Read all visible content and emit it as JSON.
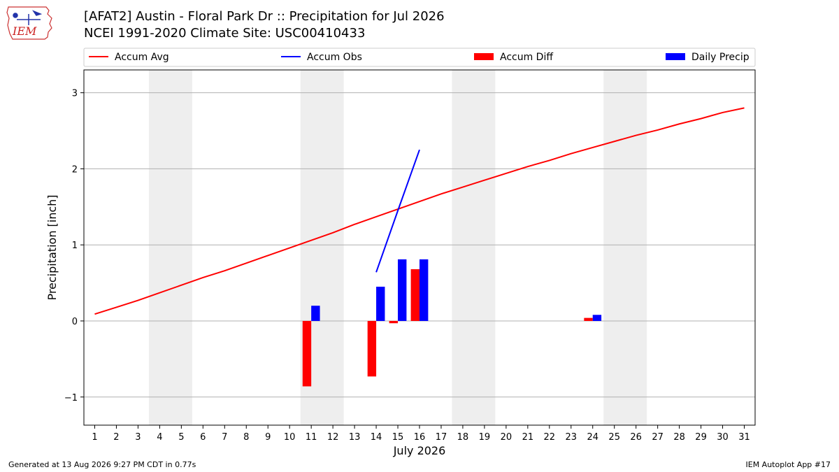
{
  "header": {
    "title_line1": "[AFAT2] Austin - Floral Park Dr :: Precipitation for Jul 2026",
    "title_line2": "NCEI 1991-2020 Climate Site: USC00410433",
    "logo_text": "IEM"
  },
  "footer": {
    "generated": "Generated at 13 Aug 2026 9:27 PM CDT in 0.77s",
    "app": "IEM Autoplot App #17"
  },
  "colors": {
    "accum_avg": "#ff0000",
    "accum_obs": "#0000ff",
    "accum_diff": "#ff0000",
    "daily_precip": "#0000ff",
    "weekend_shade": "#eeeeee",
    "grid": "#b0b0b0"
  },
  "chart_data": {
    "type": "bar",
    "xlabel": "July 2026",
    "ylabel": "Precipitation [inch]",
    "x": [
      1,
      2,
      3,
      4,
      5,
      6,
      7,
      8,
      9,
      10,
      11,
      12,
      13,
      14,
      15,
      16,
      17,
      18,
      19,
      20,
      21,
      22,
      23,
      24,
      25,
      26,
      27,
      28,
      29,
      30,
      31
    ],
    "xlim": [
      0.5,
      31.5
    ],
    "ylim": [
      -1.37,
      3.3
    ],
    "yticks": [
      -1,
      0,
      1,
      2,
      3
    ],
    "yticklabels": [
      "−1",
      "0",
      "1",
      "2",
      "3"
    ],
    "grid": "horizontal",
    "legend_position": "top, above plot",
    "legend": [
      "Accum Avg",
      "Accum Obs",
      "Accum Diff",
      "Daily Precip"
    ],
    "weekend_days": [
      4,
      5,
      11,
      12,
      18,
      19,
      25,
      26
    ],
    "series": [
      {
        "name": "Accum Avg",
        "kind": "line",
        "values": [
          0.09,
          0.18,
          0.27,
          0.37,
          0.47,
          0.57,
          0.66,
          0.76,
          0.86,
          0.96,
          1.06,
          1.16,
          1.27,
          1.37,
          1.47,
          1.57,
          1.67,
          1.76,
          1.85,
          1.94,
          2.03,
          2.11,
          2.2,
          2.28,
          2.36,
          2.44,
          2.51,
          2.59,
          2.66,
          2.74,
          2.8
        ]
      },
      {
        "name": "Accum Obs",
        "kind": "line",
        "x": [
          14,
          15,
          16
        ],
        "values": [
          0.64,
          1.45,
          2.25
        ]
      },
      {
        "name": "Accum Diff",
        "kind": "bar",
        "x": [
          11,
          14,
          15,
          16,
          24
        ],
        "values": [
          -0.86,
          -0.73,
          -0.03,
          0.68,
          0.04
        ]
      },
      {
        "name": "Daily Precip",
        "kind": "bar",
        "x": [
          11,
          14,
          15,
          16,
          24
        ],
        "values": [
          0.2,
          0.45,
          0.81,
          0.81,
          0.08
        ]
      }
    ]
  }
}
